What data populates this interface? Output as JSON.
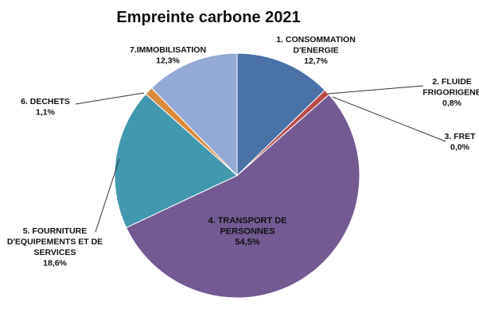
{
  "chart_data": {
    "type": "pie",
    "title": "Empreinte carbone 2021",
    "slices": [
      {
        "name_lines": [
          "1. CONSOMMATION",
          "D'ENERGIE"
        ],
        "value": 12.7,
        "value_label": "12,7%",
        "color": "#4A71A8"
      },
      {
        "name_lines": [
          "2. FLUIDE",
          "FRIGORIGENE"
        ],
        "value": 0.8,
        "value_label": "0,8%",
        "color": "#B44C4A"
      },
      {
        "name_lines": [
          "3. FRET"
        ],
        "value": 0.0,
        "value_label": "0,0%",
        "color": "#8FAE4F"
      },
      {
        "name_lines": [
          "4. TRANSPORT DE",
          "PERSONNES"
        ],
        "value": 54.5,
        "value_label": "54,5%",
        "color": "#735B92"
      },
      {
        "name_lines": [
          "5. FOURNITURE",
          "D'EQUIPEMENTS ET DE",
          "SERVICES"
        ],
        "value": 18.6,
        "value_label": "18,6%",
        "color": "#4298AD"
      },
      {
        "name_lines": [
          "6. DECHETS"
        ],
        "value": 1.1,
        "value_label": "1,1%",
        "color": "#DB8B3E"
      },
      {
        "name_lines": [
          "7.IMMOBILISATION"
        ],
        "value": 12.3,
        "value_label": "12,3%",
        "color": "#94A9D3"
      }
    ],
    "legend": "none"
  }
}
